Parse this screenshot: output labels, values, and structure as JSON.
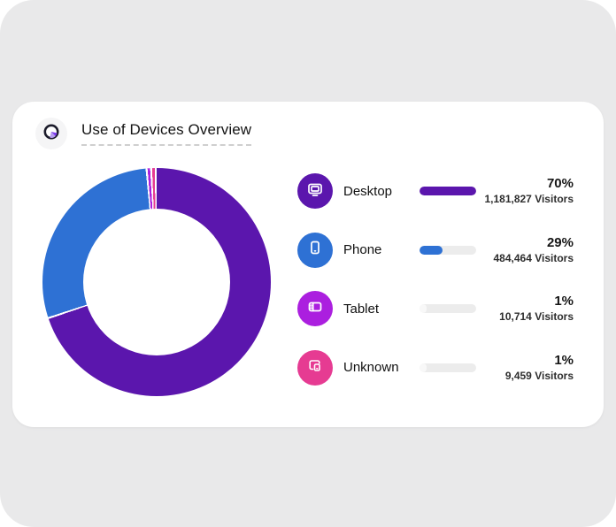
{
  "header": {
    "title": "Use of Devices Overview",
    "icon": "pie-chart-icon"
  },
  "chart_data": {
    "type": "pie",
    "donut": true,
    "title": "Use of Devices Overview",
    "categories": [
      "Desktop",
      "Phone",
      "Tablet",
      "Unknown"
    ],
    "values": [
      70,
      29,
      1,
      1
    ],
    "visitors_values": [
      1181827,
      484464,
      10714,
      9459
    ],
    "colors": [
      "#5b16ad",
      "#2e71d4",
      "#ab1fdf",
      "#e63b92"
    ],
    "start_angle_deg": 0,
    "direction": "clockwise",
    "legend_position": "right",
    "gap_color": "#ffffff"
  },
  "legend": {
    "items": [
      {
        "icon": "desktop-icon",
        "label": "Desktop",
        "percent": "70%",
        "visitors": "1,181,827 Visitors",
        "color": "#5b16ad",
        "bar_fill_pct": 100,
        "bar_fill_color": "#5b16ad"
      },
      {
        "icon": "phone-icon",
        "label": "Phone",
        "percent": "29%",
        "visitors": "484,464 Visitors",
        "color": "#2e71d4",
        "bar_fill_pct": 41,
        "bar_fill_color": "#2e71d4"
      },
      {
        "icon": "tablet-icon",
        "label": "Tablet",
        "percent": "1%",
        "visitors": "10,714 Visitors",
        "color": "#ab1fdf",
        "bar_fill_pct": 12,
        "bar_fill_color": "#f8f8f8"
      },
      {
        "icon": "devices-icon",
        "label": "Unknown",
        "percent": "1%",
        "visitors": "9,459 Visitors",
        "color": "#e63b92",
        "bar_fill_pct": 12,
        "bar_fill_color": "#f8f8f8"
      }
    ]
  }
}
